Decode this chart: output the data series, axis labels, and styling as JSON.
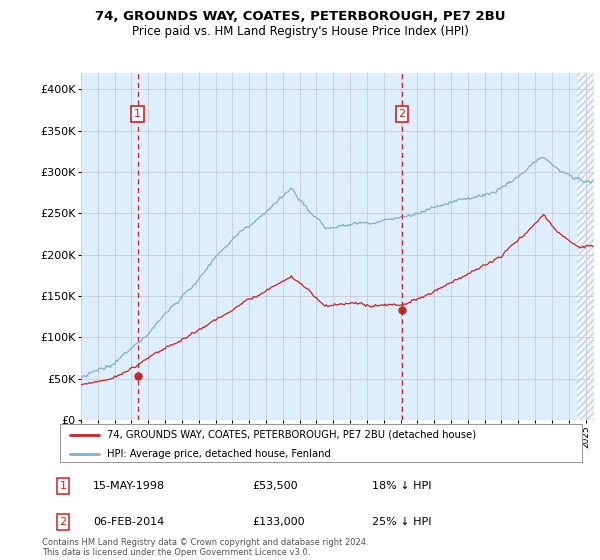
{
  "title": "74, GROUNDS WAY, COATES, PETERBOROUGH, PE7 2BU",
  "subtitle": "Price paid vs. HM Land Registry's House Price Index (HPI)",
  "ylabel_ticks": [
    "£0",
    "£50K",
    "£100K",
    "£150K",
    "£200K",
    "£250K",
    "£300K",
    "£350K",
    "£400K"
  ],
  "ylim": [
    0,
    420000
  ],
  "xlim_start": 1995.0,
  "xlim_end": 2025.5,
  "hatch_start": 2024.5,
  "sale1_date": 1998.37,
  "sale1_price": 53500,
  "sale1_label": "1",
  "sale2_date": 2014.09,
  "sale2_price": 133000,
  "sale2_label": "2",
  "hpi_color": "#7ab0d4",
  "price_color": "#cc2222",
  "vline_color": "#cc2222",
  "grid_color": "#cccccc",
  "plot_bg_color": "#ddeeff",
  "background_color": "#ffffff",
  "legend_line1": "74, GROUNDS WAY, COATES, PETERBOROUGH, PE7 2BU (detached house)",
  "legend_line2": "HPI: Average price, detached house, Fenland",
  "annotation1_date": "15-MAY-1998",
  "annotation1_price": "£53,500",
  "annotation1_hpi": "18% ↓ HPI",
  "annotation2_date": "06-FEB-2014",
  "annotation2_price": "£133,000",
  "annotation2_hpi": "25% ↓ HPI",
  "footer": "Contains HM Land Registry data © Crown copyright and database right 2024.\nThis data is licensed under the Open Government Licence v3.0."
}
